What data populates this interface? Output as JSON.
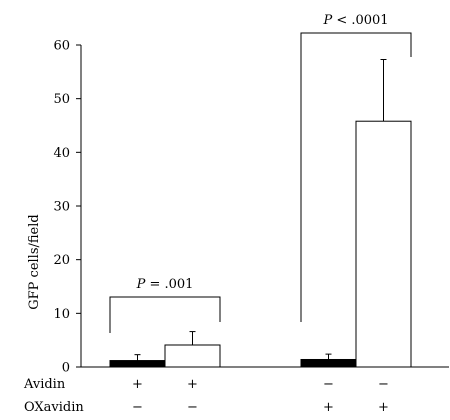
{
  "chart_data": {
    "type": "bar",
    "ylabel": "GFP cells/field",
    "ylim": [
      0,
      60
    ],
    "yticks": [
      0,
      10,
      20,
      30,
      40,
      50,
      60
    ],
    "groups": [
      {
        "avidin": "+",
        "oxavidin": "−",
        "bars": [
          {
            "fill": "#000000",
            "value": 1.2,
            "error": 1.1
          },
          {
            "fill": "#ffffff",
            "value": 4.1,
            "error": 2.5
          }
        ],
        "significance": {
          "prefix": "P",
          "text": " = .001"
        }
      },
      {
        "avidin": "−",
        "oxavidin": "+",
        "bars": [
          {
            "fill": "#000000",
            "value": 1.4,
            "error": 1.0
          },
          {
            "fill": "#ffffff",
            "value": 45.8,
            "error": 11.5
          }
        ],
        "significance": {
          "prefix": "P",
          "text": " < .0001"
        }
      }
    ],
    "row_labels": {
      "avidin": "Avidin",
      "oxavidin": "OXavidin"
    },
    "grid": false,
    "legend": "none"
  }
}
